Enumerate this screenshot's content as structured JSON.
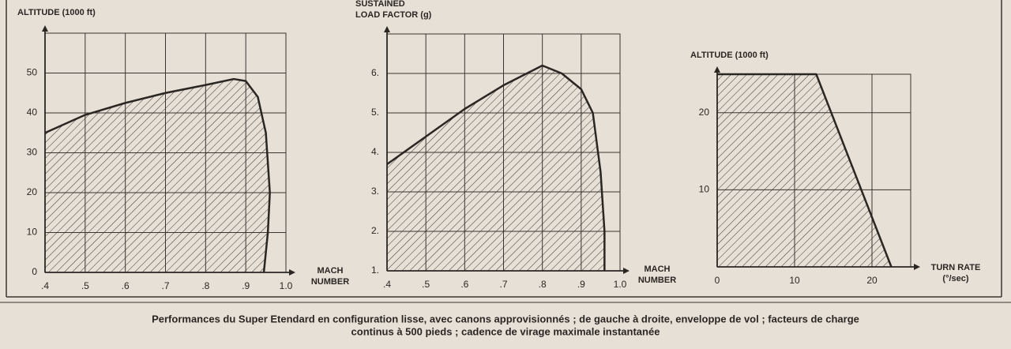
{
  "chart_data": [
    {
      "type": "area",
      "y_label": "ALTITUDE (1000 ft)",
      "x_label": [
        "MACH",
        "NUMBER"
      ],
      "x": [
        0.4,
        0.5,
        0.6,
        0.7,
        0.8,
        0.87,
        0.9,
        0.93,
        0.95,
        0.96,
        0.955,
        0.945
      ],
      "values": [
        35,
        39.5,
        42.5,
        45,
        47,
        48.5,
        48,
        44,
        35,
        20,
        10,
        0
      ],
      "xlim": [
        0.4,
        1.0
      ],
      "ylim": [
        0,
        60
      ],
      "xticks": [
        {
          "value": 0.4,
          "label": ".4"
        },
        {
          "value": 0.5,
          "label": ".5"
        },
        {
          "value": 0.6,
          "label": ".6"
        },
        {
          "value": 0.7,
          "label": ".7"
        },
        {
          "value": 0.8,
          "label": ".8"
        },
        {
          "value": 0.9,
          "label": ".9"
        },
        {
          "value": 1.0,
          "label": "1.0"
        }
      ],
      "yticks": [
        0,
        10,
        20,
        30,
        40,
        50
      ],
      "grid": true,
      "color": "#2a2622"
    },
    {
      "type": "area",
      "y_label": [
        "SUSTAINED",
        "LOAD FACTOR (g)"
      ],
      "x_label": [
        "MACH",
        "NUMBER"
      ],
      "x": [
        0.4,
        0.5,
        0.6,
        0.7,
        0.8,
        0.85,
        0.9,
        0.93,
        0.95,
        0.96,
        0.96
      ],
      "values": [
        3.7,
        4.4,
        5.1,
        5.7,
        6.2,
        6.0,
        5.6,
        5.0,
        3.5,
        2,
        1
      ],
      "xlim": [
        0.4,
        1.0
      ],
      "ylim": [
        1,
        7
      ],
      "xticks": [
        {
          "value": 0.4,
          "label": ".4"
        },
        {
          "value": 0.5,
          "label": ".5"
        },
        {
          "value": 0.6,
          "label": ".6"
        },
        {
          "value": 0.7,
          "label": ".7"
        },
        {
          "value": 0.8,
          "label": ".8"
        },
        {
          "value": 0.9,
          "label": ".9"
        },
        {
          "value": 1.0,
          "label": "1.0"
        }
      ],
      "yticks": [
        {
          "value": 1,
          "label": "1."
        },
        {
          "value": 2,
          "label": "2."
        },
        {
          "value": 3,
          "label": "3."
        },
        {
          "value": 4,
          "label": "4."
        },
        {
          "value": 5,
          "label": "5."
        },
        {
          "value": 6,
          "label": "6."
        }
      ],
      "grid": true,
      "color": "#2a2622"
    },
    {
      "type": "area",
      "y_label": "ALTITUDE (1000 ft)",
      "x_label": [
        "TURN RATE",
        "(°/sec)"
      ],
      "x": [
        0,
        12.8,
        22.5
      ],
      "values": [
        25,
        25,
        0
      ],
      "xlim": [
        0,
        25
      ],
      "ylim": [
        0,
        25
      ],
      "xticks": [
        0,
        10,
        20
      ],
      "yticks": [
        10,
        20
      ],
      "grid": true,
      "color": "#2a2622"
    }
  ],
  "caption": [
    "Performances du Super Etendard en configuration lisse, avec canons approvisionnés ; de gauche à droite, enveloppe de vol ; facteurs de charge",
    "continus à 500 pieds ; cadence de virage maximale instantanée"
  ]
}
